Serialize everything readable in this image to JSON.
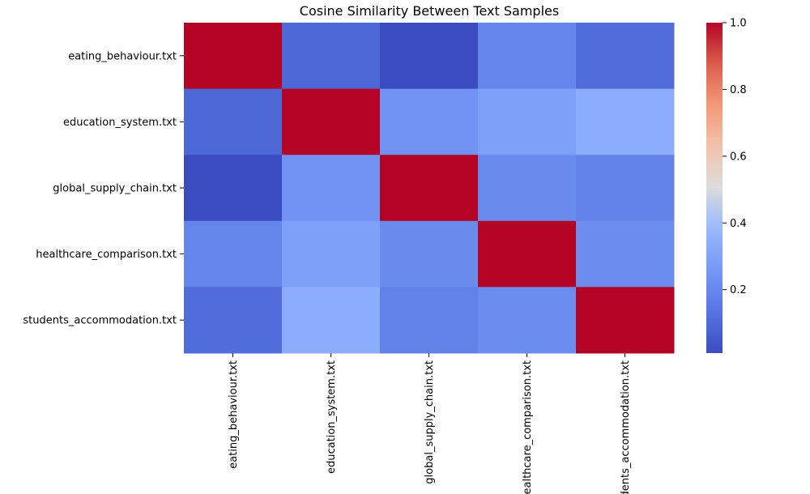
{
  "chart_data": {
    "type": "heatmap",
    "title": "Cosine Similarity Between Text Samples",
    "xlabel": "",
    "ylabel": "",
    "rows": [
      "eating_behaviour.txt",
      "education_system.txt",
      "global_supply_chain.txt",
      "healthcare_comparison.txt",
      "students_accommodation.txt"
    ],
    "columns": [
      "eating_behaviour.txt",
      "education_system.txt",
      "global_supply_chain.txt",
      "healthcare_comparison.txt",
      "students_accommodation.txt"
    ],
    "values": [
      [
        1.0,
        0.09,
        0.01,
        0.19,
        0.11
      ],
      [
        0.09,
        1.0,
        0.24,
        0.29,
        0.34
      ],
      [
        0.01,
        0.24,
        1.0,
        0.21,
        0.18
      ],
      [
        0.19,
        0.29,
        0.21,
        1.0,
        0.22
      ],
      [
        0.11,
        0.34,
        0.18,
        0.22,
        1.0
      ]
    ],
    "colormap": "coolwarm",
    "color_range": [
      0.01,
      1.0
    ],
    "colorbar": {
      "ticks": [
        0.2,
        0.4,
        0.6,
        0.8,
        1.0
      ],
      "tick_labels": [
        "0.2",
        "0.4",
        "0.6",
        "0.8",
        "1.0"
      ],
      "placement": "right"
    },
    "grid": false,
    "legend": "none"
  }
}
